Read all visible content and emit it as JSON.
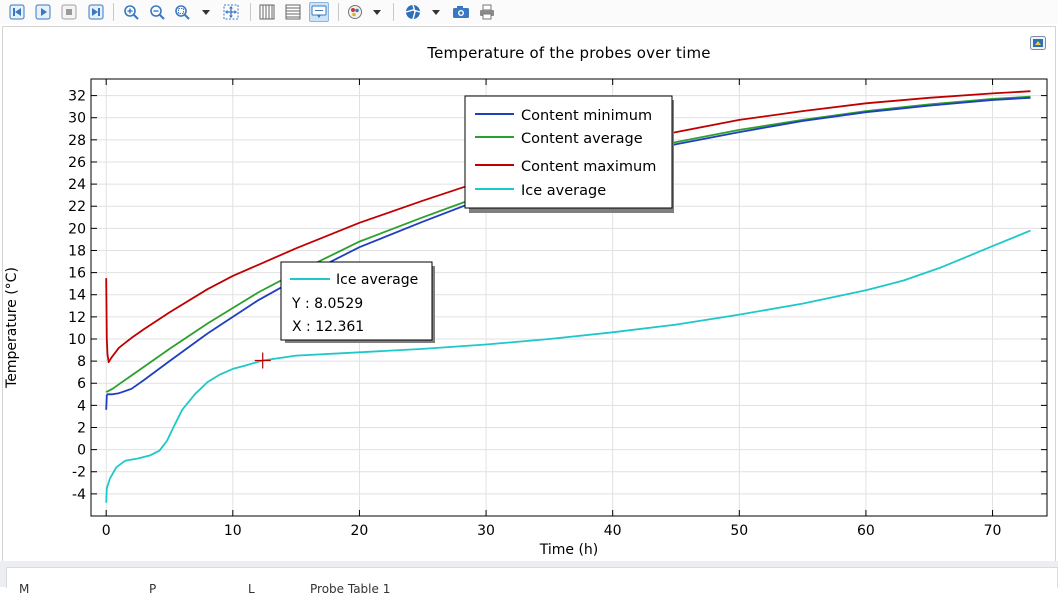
{
  "toolbar": {
    "buttons": [
      "first-frame-icon",
      "play-icon",
      "stop-icon",
      "last-frame-icon",
      "zoom-in-icon",
      "zoom-out-icon",
      "zoom-box-icon",
      "zoom-to-extents-icon",
      "table-columns-icon",
      "table-rows-icon",
      "point-tooltip-icon",
      "color-table-icon",
      "scene-light-icon",
      "camera-icon",
      "print-icon"
    ]
  },
  "chart_data": {
    "type": "line",
    "title": "Temperature of the probes over time",
    "xlabel": "Time (h)",
    "ylabel": "Temperature (°C)",
    "xlim": [
      -1.2,
      74.3
    ],
    "ylim": [
      -6,
      33.5
    ],
    "xticks": [
      0,
      10,
      20,
      30,
      40,
      50,
      60,
      70
    ],
    "yticks": [
      -4,
      -2,
      0,
      2,
      4,
      6,
      8,
      10,
      12,
      14,
      16,
      18,
      20,
      22,
      24,
      26,
      28,
      30,
      32
    ],
    "grid": true,
    "legend_position": "top-center",
    "series": [
      {
        "name": "Content minimum",
        "color": "#1f3fbf",
        "x": [
          0,
          0.05,
          0.1,
          0.5,
          1,
          2,
          3,
          5,
          8,
          10,
          12,
          15,
          20,
          25,
          30,
          35,
          40,
          45,
          50,
          55,
          60,
          65,
          70,
          73
        ],
        "y": [
          3.6,
          4.9,
          5.0,
          5.0,
          5.1,
          5.5,
          6.3,
          8.0,
          10.5,
          12.0,
          13.5,
          15.4,
          18.3,
          20.6,
          22.8,
          24.6,
          26.2,
          27.6,
          28.7,
          29.7,
          30.5,
          31.1,
          31.6,
          31.8
        ]
      },
      {
        "name": "Content average",
        "color": "#2ca02c",
        "x": [
          0,
          0.5,
          1,
          2,
          3,
          5,
          8,
          10,
          12,
          15,
          20,
          25,
          30,
          35,
          40,
          45,
          50,
          55,
          60,
          65,
          70,
          73
        ],
        "y": [
          5.2,
          5.5,
          5.9,
          6.7,
          7.5,
          9.1,
          11.4,
          12.8,
          14.2,
          16.0,
          18.8,
          21.0,
          23.1,
          24.9,
          26.5,
          27.8,
          28.9,
          29.8,
          30.6,
          31.2,
          31.7,
          31.9
        ]
      },
      {
        "name": "Content maximum",
        "color": "#c00000",
        "x": [
          0,
          0.05,
          0.1,
          0.2,
          0.4,
          1,
          2,
          3,
          5,
          8,
          10,
          12,
          15,
          20,
          25,
          30,
          35,
          40,
          45,
          50,
          55,
          60,
          65,
          70,
          73
        ],
        "y": [
          15.5,
          10.0,
          8.6,
          7.9,
          8.3,
          9.2,
          10.1,
          10.9,
          12.4,
          14.5,
          15.7,
          16.7,
          18.2,
          20.5,
          22.5,
          24.4,
          26.1,
          27.5,
          28.7,
          29.8,
          30.6,
          31.3,
          31.8,
          32.2,
          32.4
        ]
      },
      {
        "name": "Ice average",
        "color": "#1ec8c8",
        "x": [
          0,
          0.05,
          0.3,
          0.8,
          1.5,
          2.5,
          3.5,
          4.2,
          4.8,
          5.3,
          6,
          7,
          8,
          9,
          10,
          11,
          12.361,
          15,
          20,
          25,
          30,
          35,
          40,
          45,
          50,
          55,
          60,
          63,
          66,
          70,
          73
        ],
        "y": [
          -4.8,
          -3.5,
          -2.6,
          -1.6,
          -1.0,
          -0.8,
          -0.5,
          -0.1,
          0.8,
          2.0,
          3.6,
          5.0,
          6.1,
          6.8,
          7.3,
          7.6,
          8.0529,
          8.5,
          8.8,
          9.1,
          9.5,
          10.0,
          10.6,
          11.3,
          12.2,
          13.2,
          14.4,
          15.3,
          16.5,
          18.4,
          19.8
        ]
      }
    ],
    "tooltip": {
      "series": "Ice average",
      "y_text": "Y : 8.0529",
      "x_text": "X : 12.361",
      "x": 12.361,
      "y": 8.0529
    }
  },
  "bottom_panel": {
    "tabs": [
      "M",
      "P",
      "L",
      "Probe Table 1"
    ]
  }
}
